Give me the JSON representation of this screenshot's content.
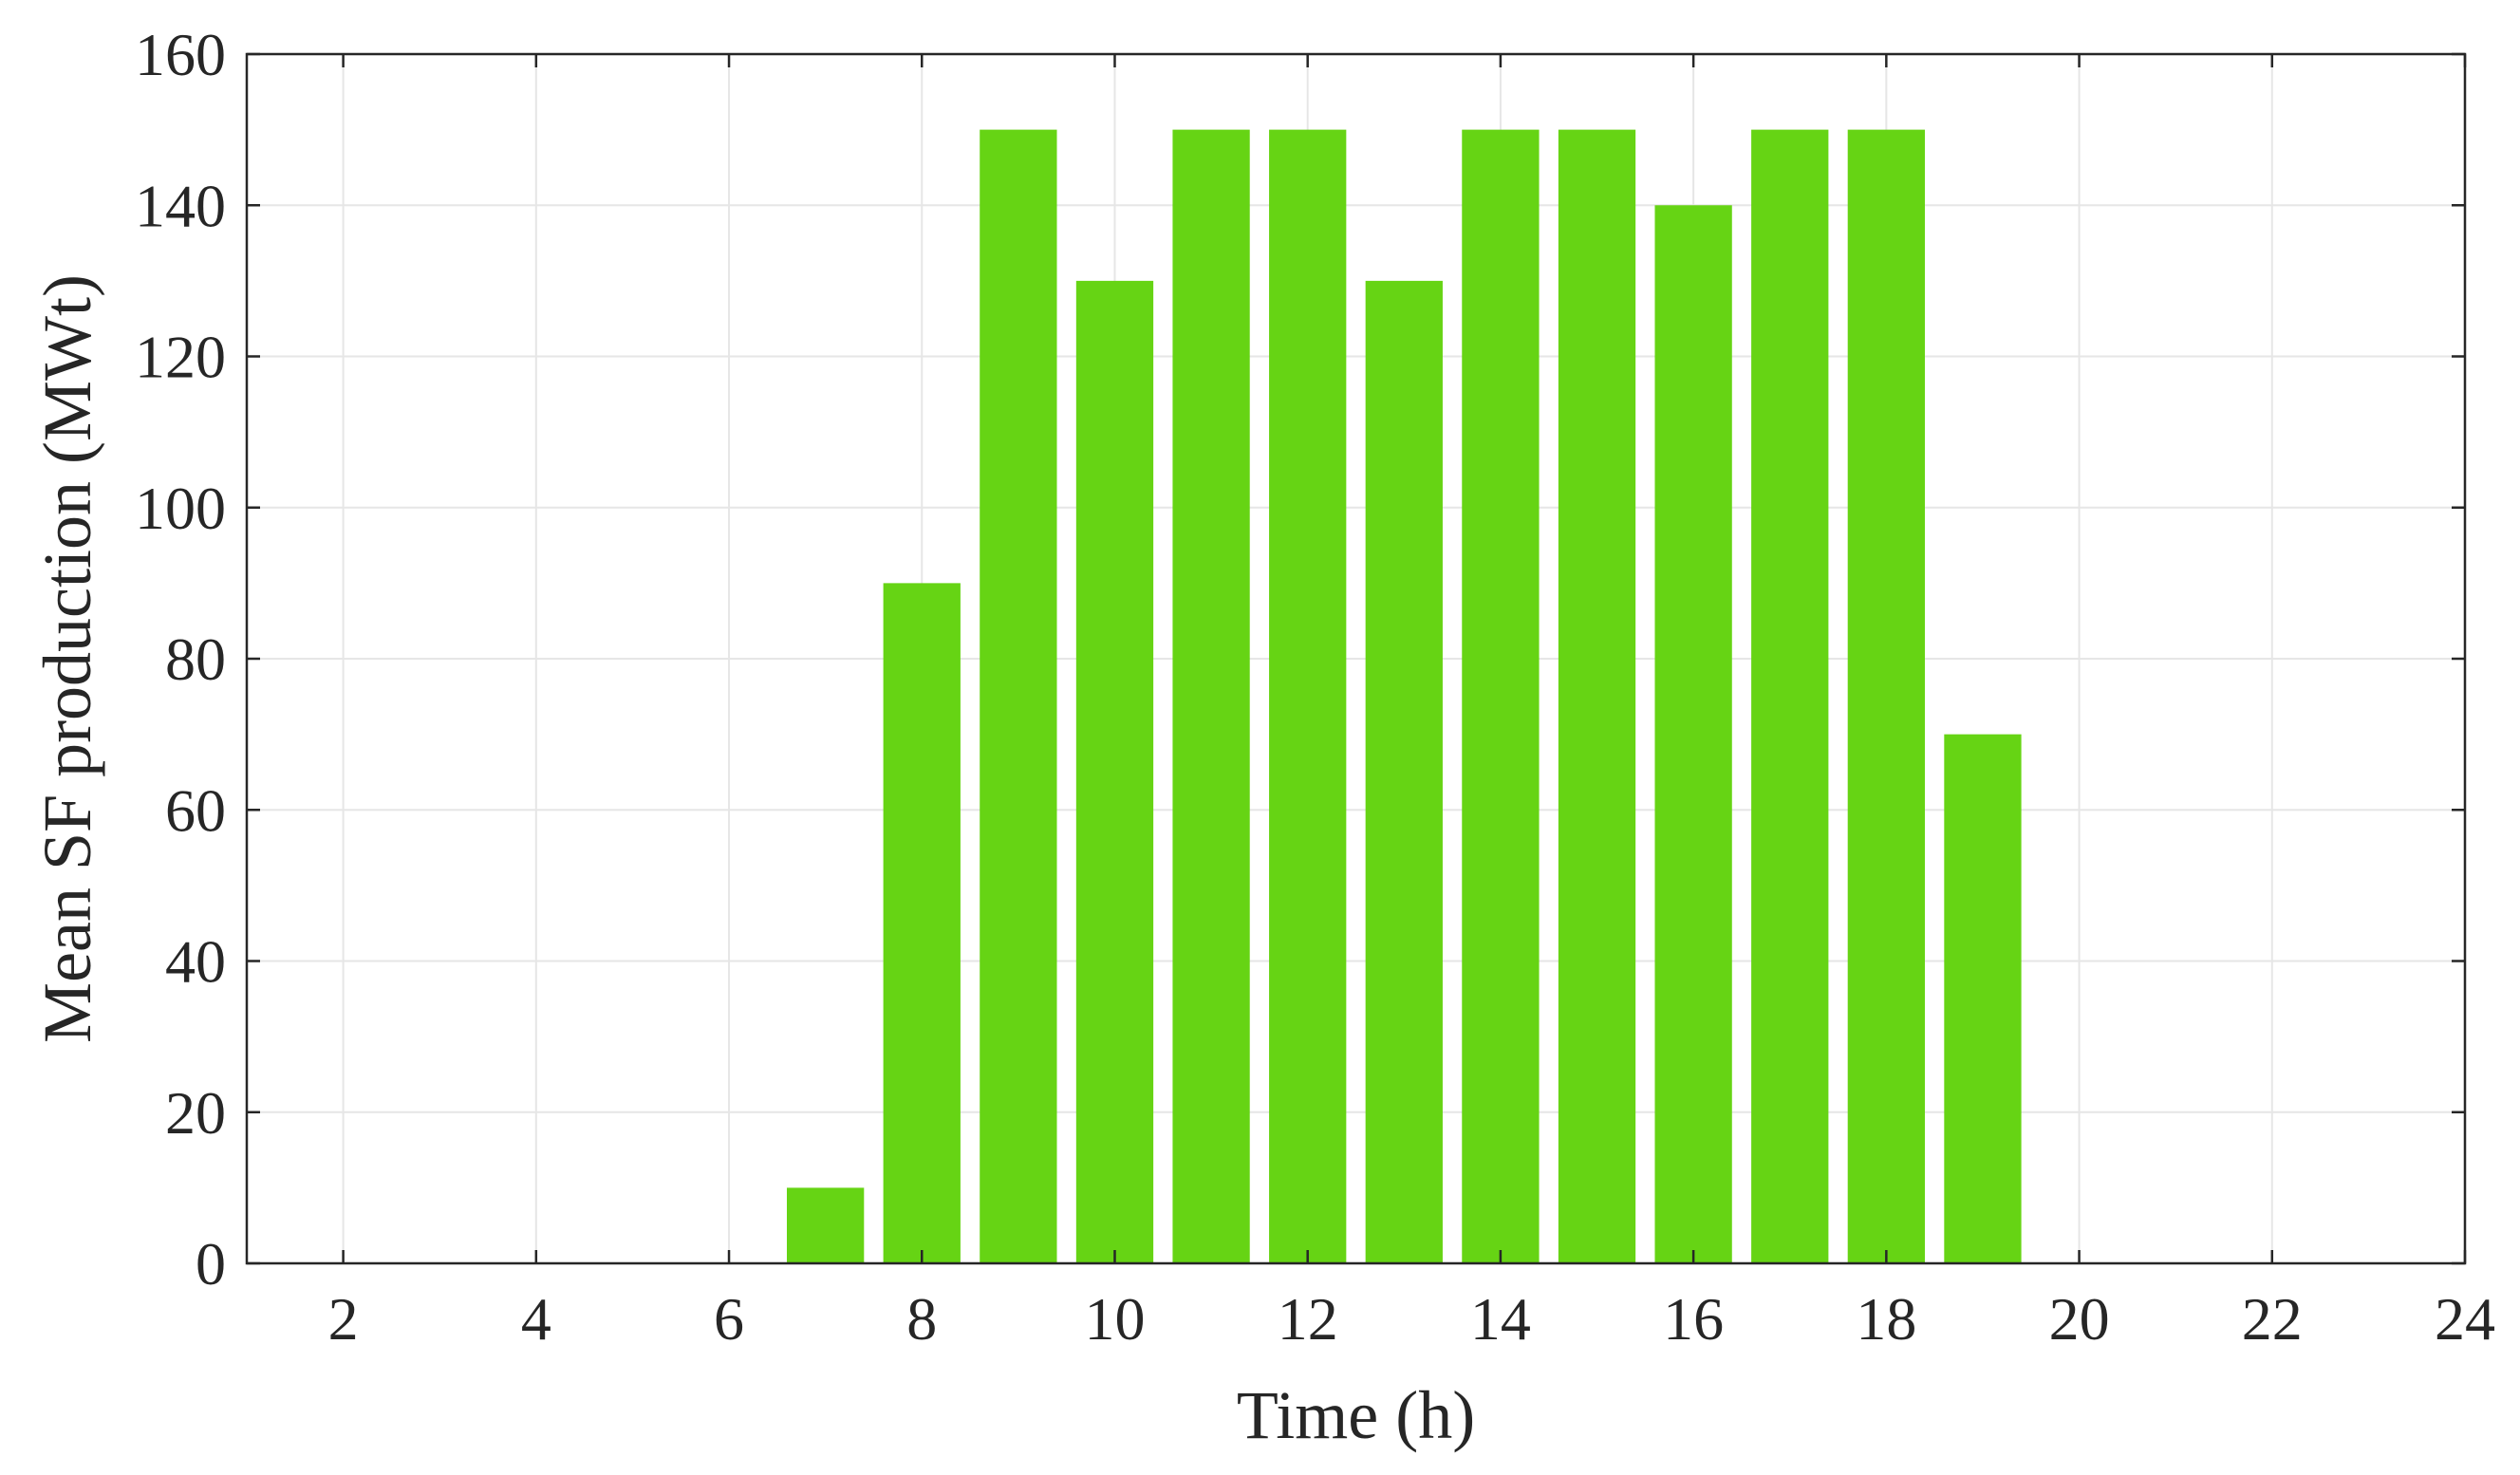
{
  "chart_data": {
    "type": "bar",
    "x": [
      1,
      2,
      3,
      4,
      5,
      6,
      7,
      8,
      9,
      10,
      11,
      12,
      13,
      14,
      15,
      16,
      17,
      18,
      19,
      20,
      21,
      22,
      23,
      24
    ],
    "values": [
      0,
      0,
      0,
      0,
      0,
      0,
      10,
      90,
      150,
      130,
      150,
      150,
      130,
      150,
      150,
      140,
      150,
      150,
      70,
      0,
      0,
      0,
      0,
      0
    ],
    "title": "",
    "xlabel": "Time (h)",
    "ylabel": "Mean SF production (MWt)",
    "xlim": [
      1,
      24
    ],
    "ylim": [
      0,
      160
    ],
    "xticks": [
      2,
      4,
      6,
      8,
      10,
      12,
      14,
      16,
      18,
      20,
      22,
      24
    ],
    "yticks": [
      0,
      20,
      40,
      60,
      80,
      100,
      120,
      140,
      160
    ],
    "grid": true,
    "legend": "none",
    "bar_color": "#66d414"
  }
}
